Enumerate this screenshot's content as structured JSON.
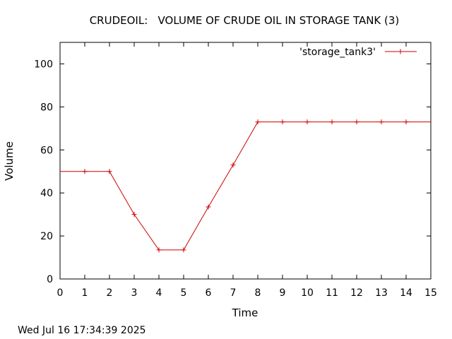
{
  "chart_data": {
    "type": "line",
    "title": "CRUDEOIL:   VOLUME OF CRUDE OIL IN STORAGE TANK (3)",
    "xlabel": "Time",
    "ylabel": "Volume",
    "xlim": [
      0,
      15
    ],
    "ylim": [
      0,
      110
    ],
    "xticks": [
      "0",
      "1",
      "2",
      "3",
      "4",
      "5",
      "6",
      "7",
      "8",
      "9",
      "10",
      "11",
      "12",
      "13",
      "14",
      "15"
    ],
    "yticks": [
      "0",
      "20",
      "40",
      "60",
      "80",
      "100"
    ],
    "grid": false,
    "legend_position": "top-right",
    "series": [
      {
        "name": "'storage_tank3'",
        "color": "#cc0000",
        "marker": "plus",
        "x": [
          0,
          1,
          2,
          3,
          4,
          5,
          6,
          7,
          8,
          9,
          10,
          11,
          12,
          13,
          14,
          15
        ],
        "y": [
          50,
          50,
          50,
          30,
          13.5,
          13.5,
          33.5,
          53,
          73,
          73,
          73,
          73,
          73,
          73,
          73,
          73
        ],
        "marker_x": [
          1,
          2,
          3,
          4,
          5,
          6,
          7,
          8,
          9,
          10,
          11,
          12,
          13,
          14
        ]
      }
    ]
  },
  "timestamp": "Wed Jul 16 17:34:39 2025"
}
